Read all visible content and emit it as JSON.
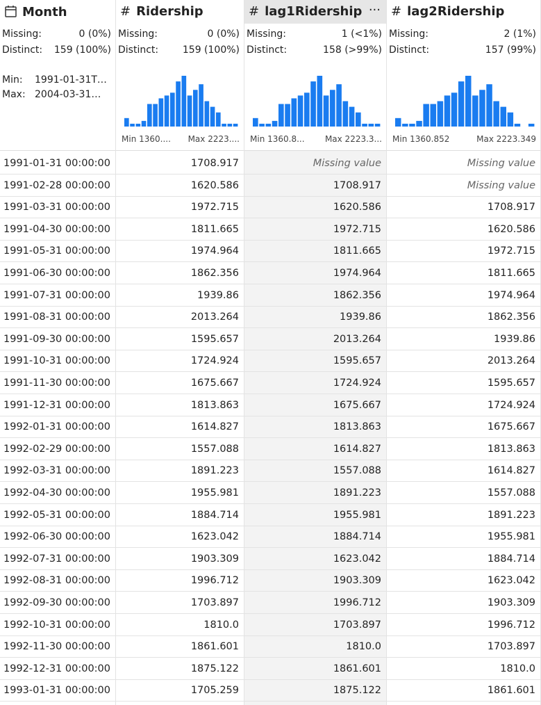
{
  "columns": [
    {
      "name": "Month",
      "missing_label": "Missing:",
      "missing": "0 (0%)",
      "distinct_label": "Distinct:",
      "distinct": "159 (100%)",
      "min_label": "Min:",
      "min": "1991-01-31T…",
      "max_label": "Max:",
      "max": "2004-03-31…"
    },
    {
      "symbol": "#",
      "name": "Ridership",
      "missing_label": "Missing:",
      "missing": "0 (0%)",
      "distinct_label": "Distinct:",
      "distinct": "159 (100%)",
      "histogram": [
        3,
        1,
        1,
        2,
        8,
        8,
        10,
        11,
        12,
        16,
        18,
        11,
        13,
        15,
        9,
        7,
        5,
        1,
        1,
        1
      ],
      "hist_min": "Min 1360....",
      "hist_max": "Max 2223...."
    },
    {
      "symbol": "#",
      "name": "lag1Ridership",
      "more": "···",
      "missing_label": "Missing:",
      "missing": "1 (<1%)",
      "distinct_label": "Distinct:",
      "distinct": "158 (>99%)",
      "histogram": [
        3,
        1,
        1,
        2,
        8,
        8,
        10,
        11,
        12,
        16,
        18,
        11,
        13,
        15,
        9,
        7,
        5,
        1,
        1,
        1
      ],
      "hist_min": "Min 1360.8...",
      "hist_max": "Max 2223.3..."
    },
    {
      "symbol": "#",
      "name": "lag2Ridership",
      "missing_label": "Missing:",
      "missing": "2 (1%)",
      "distinct_label": "Distinct:",
      "distinct": "157 (99%)",
      "histogram": [
        3,
        1,
        1,
        2,
        8,
        8,
        9,
        11,
        12,
        16,
        18,
        11,
        13,
        15,
        9,
        7,
        5,
        1,
        0,
        1
      ],
      "hist_min": "Min 1360.852",
      "hist_max": "Max 2223.349"
    }
  ],
  "table": {
    "rows": [
      [
        "1991-01-31 00:00:00",
        "1708.917",
        "Missing value",
        "Missing value"
      ],
      [
        "1991-02-28 00:00:00",
        "1620.586",
        "1708.917",
        "Missing value"
      ],
      [
        "1991-03-31 00:00:00",
        "1972.715",
        "1620.586",
        "1708.917"
      ],
      [
        "1991-04-30 00:00:00",
        "1811.665",
        "1972.715",
        "1620.586"
      ],
      [
        "1991-05-31 00:00:00",
        "1974.964",
        "1811.665",
        "1972.715"
      ],
      [
        "1991-06-30 00:00:00",
        "1862.356",
        "1974.964",
        "1811.665"
      ],
      [
        "1991-07-31 00:00:00",
        "1939.86",
        "1862.356",
        "1974.964"
      ],
      [
        "1991-08-31 00:00:00",
        "2013.264",
        "1939.86",
        "1862.356"
      ],
      [
        "1991-09-30 00:00:00",
        "1595.657",
        "2013.264",
        "1939.86"
      ],
      [
        "1991-10-31 00:00:00",
        "1724.924",
        "1595.657",
        "2013.264"
      ],
      [
        "1991-11-30 00:00:00",
        "1675.667",
        "1724.924",
        "1595.657"
      ],
      [
        "1991-12-31 00:00:00",
        "1813.863",
        "1675.667",
        "1724.924"
      ],
      [
        "1992-01-31 00:00:00",
        "1614.827",
        "1813.863",
        "1675.667"
      ],
      [
        "1992-02-29 00:00:00",
        "1557.088",
        "1614.827",
        "1813.863"
      ],
      [
        "1992-03-31 00:00:00",
        "1891.223",
        "1557.088",
        "1614.827"
      ],
      [
        "1992-04-30 00:00:00",
        "1955.981",
        "1891.223",
        "1557.088"
      ],
      [
        "1992-05-31 00:00:00",
        "1884.714",
        "1955.981",
        "1891.223"
      ],
      [
        "1992-06-30 00:00:00",
        "1623.042",
        "1884.714",
        "1955.981"
      ],
      [
        "1992-07-31 00:00:00",
        "1903.309",
        "1623.042",
        "1884.714"
      ],
      [
        "1992-08-31 00:00:00",
        "1996.712",
        "1903.309",
        "1623.042"
      ],
      [
        "1992-09-30 00:00:00",
        "1703.897",
        "1996.712",
        "1903.309"
      ],
      [
        "1992-10-31 00:00:00",
        "1810.0",
        "1703.897",
        "1996.712"
      ],
      [
        "1992-11-30 00:00:00",
        "1861.601",
        "1810.0",
        "1703.897"
      ],
      [
        "1992-12-31 00:00:00",
        "1875.122",
        "1861.601",
        "1810.0"
      ],
      [
        "1993-01-31 00:00:00",
        "1705.259",
        "1875.122",
        "1861.601"
      ]
    ]
  }
}
